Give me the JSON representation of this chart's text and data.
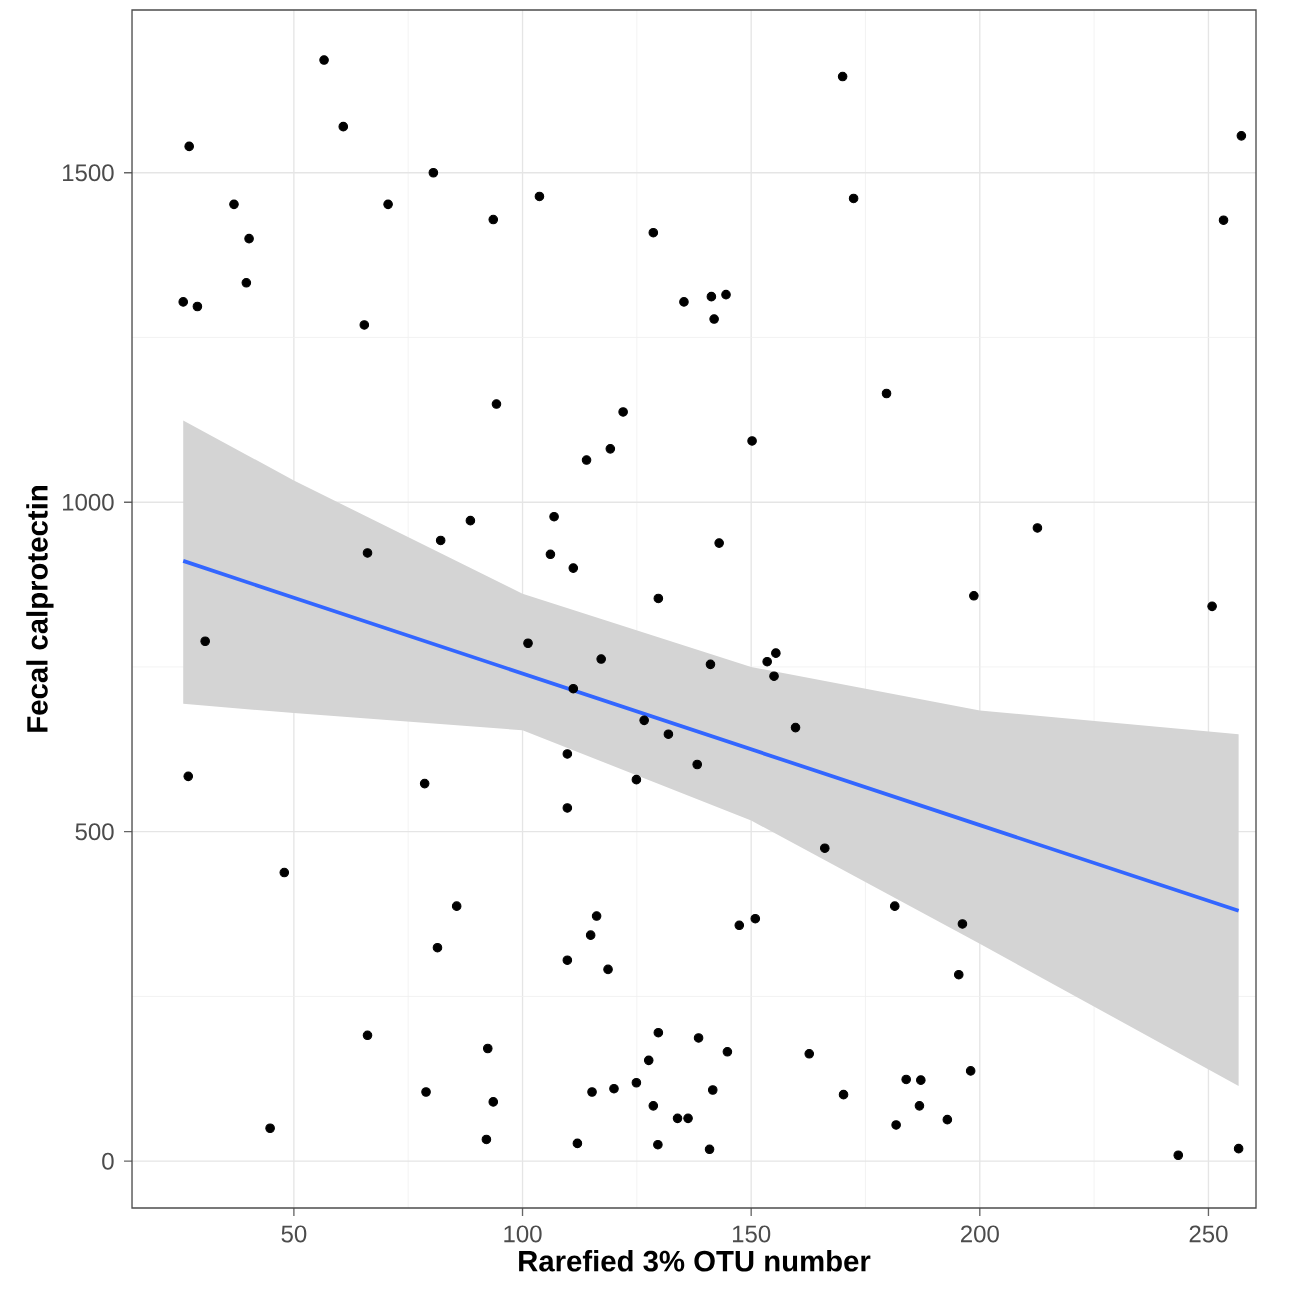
{
  "chart_data": {
    "type": "scatter",
    "xlabel": "Rarefied 3% OTU number",
    "ylabel": "Fecal calprotectin",
    "xlim": [
      14.6,
      260.4
    ],
    "ylim": [
      -71,
      1747
    ],
    "xticks": [
      50,
      100,
      150,
      200,
      250
    ],
    "yticks": [
      0,
      500,
      1000,
      1500
    ],
    "grid": true,
    "series": [
      {
        "color": "#000000",
        "marker": "circle",
        "x": [
          27.1,
          56.6,
          60.8,
          80.5,
          36.9,
          70.6,
          103.7,
          93.6,
          128.6,
          40.2,
          39.6,
          25.8,
          28.9,
          65.4,
          135.3,
          94.3,
          122.0,
          119.2,
          114.0,
          106.9,
          88.6,
          82.1,
          66.1,
          106.1,
          111.1,
          129.7,
          170.0,
          257.2,
          172.4,
          253.3,
          141.3,
          144.5,
          141.9,
          179.6,
          150.2,
          212.6,
          143.0,
          198.7,
          250.8,
          30.6,
          101.2,
          117.2,
          111.1,
          126.6,
          131.9,
          138.2,
          26.9,
          78.6,
          109.8,
          124.9,
          109.8,
          47.9,
          85.6,
          116.2,
          114.9,
          81.4,
          109.8,
          118.7,
          66.1,
          129.7,
          138.5,
          92.4,
          127.6,
          78.9,
          93.6,
          115.2,
          120.0,
          124.9,
          128.6,
          133.9,
          136.2,
          44.8,
          92.1,
          112.0,
          129.6,
          141.1,
          153.5,
          155.4,
          155.0,
          159.7,
          166.1,
          181.4,
          196.2,
          147.4,
          150.9,
          195.4,
          144.8,
          162.7,
          141.6,
          183.9,
          187.1,
          198.0,
          170.2,
          186.8,
          192.9,
          181.7,
          140.9,
          243.4,
          256.6
        ],
        "values": [
          1540,
          1671,
          1570,
          1500,
          1452,
          1452,
          1464,
          1429,
          1409,
          1400,
          1333,
          1304,
          1297,
          1269,
          1304,
          1149,
          1137,
          1081,
          1064,
          978,
          972,
          942,
          923,
          921,
          900,
          854,
          1646,
          1556,
          1461,
          1428,
          1312,
          1315,
          1278,
          1165,
          1093,
          961,
          938,
          858,
          842,
          789,
          786,
          762,
          717,
          669,
          648,
          602,
          584,
          573,
          618,
          579,
          536,
          438,
          387,
          372,
          343,
          324,
          305,
          291,
          191,
          195,
          187,
          171,
          153,
          105,
          90,
          105,
          110,
          119,
          84,
          65,
          65,
          50,
          33,
          27,
          25,
          754,
          758,
          771,
          736,
          658,
          475,
          387,
          360,
          358,
          368,
          283,
          166,
          163,
          108,
          124,
          123,
          137,
          101,
          84,
          63,
          55,
          18,
          9,
          19
        ]
      },
      {
        "type": "line",
        "color": "#3366ff",
        "marker": "none",
        "x": [
          25.8,
          50,
          100,
          150,
          200,
          256.6
        ],
        "values": [
          911,
          855,
          740,
          625,
          510,
          380
        ],
        "lower": [
          694,
          680,
          654,
          517,
          330,
          114
        ],
        "upper": [
          1124,
          1033,
          861,
          750,
          684,
          648
        ]
      }
    ]
  }
}
